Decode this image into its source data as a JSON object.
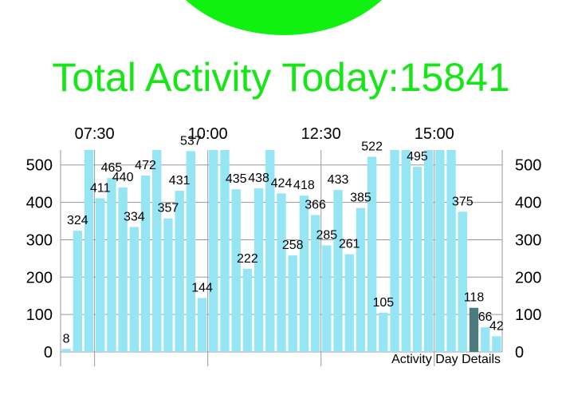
{
  "header": {
    "title": "Total Activity Today:15841"
  },
  "colors": {
    "accent": "#11f111",
    "title": "#16e616",
    "bar": "#95e5f5",
    "bar_selected": "#4b7b80",
    "grid": "#9a9a9a"
  },
  "chart_data": {
    "type": "bar",
    "title": "",
    "description_label": "Activity Day Details",
    "xlabel": "",
    "ylabel": "",
    "y_ticks": [
      0,
      100,
      200,
      300,
      400,
      500
    ],
    "y_ticks_right": [
      0,
      100,
      200,
      300,
      400,
      500
    ],
    "ylim": [
      0,
      540
    ],
    "x_ticks": [
      "07:30",
      "10:00",
      "12:30",
      "15:00"
    ],
    "grid": true,
    "selected_index": 36,
    "values": [
      8,
      324,
      540,
      411,
      465,
      440,
      334,
      472,
      540,
      357,
      431,
      537,
      144,
      540,
      540,
      435,
      222,
      438,
      540,
      424,
      258,
      418,
      366,
      285,
      433,
      261,
      385,
      522,
      105,
      540,
      540,
      495,
      540,
      540,
      540,
      375,
      118,
      66,
      42
    ],
    "labels": [
      "8",
      "324",
      "",
      "411",
      "465",
      "440",
      "334",
      "472",
      "",
      "357",
      "431",
      "537",
      "144",
      "",
      "",
      "435",
      "222",
      "438",
      "",
      "424",
      "258",
      "418",
      "366",
      "285",
      "433",
      "261",
      "385",
      "522",
      "105",
      "",
      "",
      "495",
      "",
      "",
      "",
      "375",
      "118",
      "66",
      "42"
    ]
  }
}
